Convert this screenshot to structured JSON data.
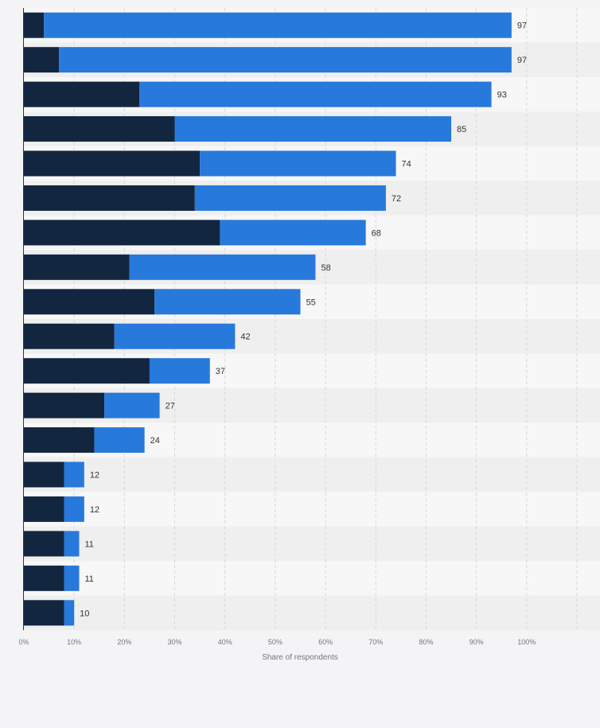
{
  "chart_data": {
    "type": "bar",
    "orientation": "horizontal",
    "stacked": true,
    "xlabel": "Share of respondents",
    "xlim": [
      0,
      110
    ],
    "x_ticks": [
      "0%",
      "10%",
      "20%",
      "30%",
      "40%",
      "50%",
      "60%",
      "70%",
      "80%",
      "90%",
      "100%"
    ],
    "grid": true,
    "colors": {
      "segment_dark": "#12263f",
      "segment_blue": "#2779dc",
      "row_band_a": "#f7f7f7",
      "row_band_b": "#efefef",
      "value_label": "#333333",
      "tick_label": "#777777",
      "gridline": "#d8d8d8"
    },
    "totals": [
      97,
      97,
      93,
      85,
      74,
      72,
      68,
      58,
      55,
      42,
      37,
      27,
      24,
      12,
      12,
      11,
      11,
      10
    ],
    "dark_segment": [
      4,
      7,
      23,
      30,
      35,
      34,
      39,
      21,
      26,
      18,
      25,
      16,
      14,
      8,
      8,
      8,
      8,
      8
    ],
    "value_labels": [
      "97",
      "97",
      "93",
      "85",
      "74",
      "72",
      "68",
      "58",
      "55",
      "42",
      "37",
      "27",
      "24",
      "12",
      "12",
      "11",
      "11",
      "10"
    ]
  }
}
